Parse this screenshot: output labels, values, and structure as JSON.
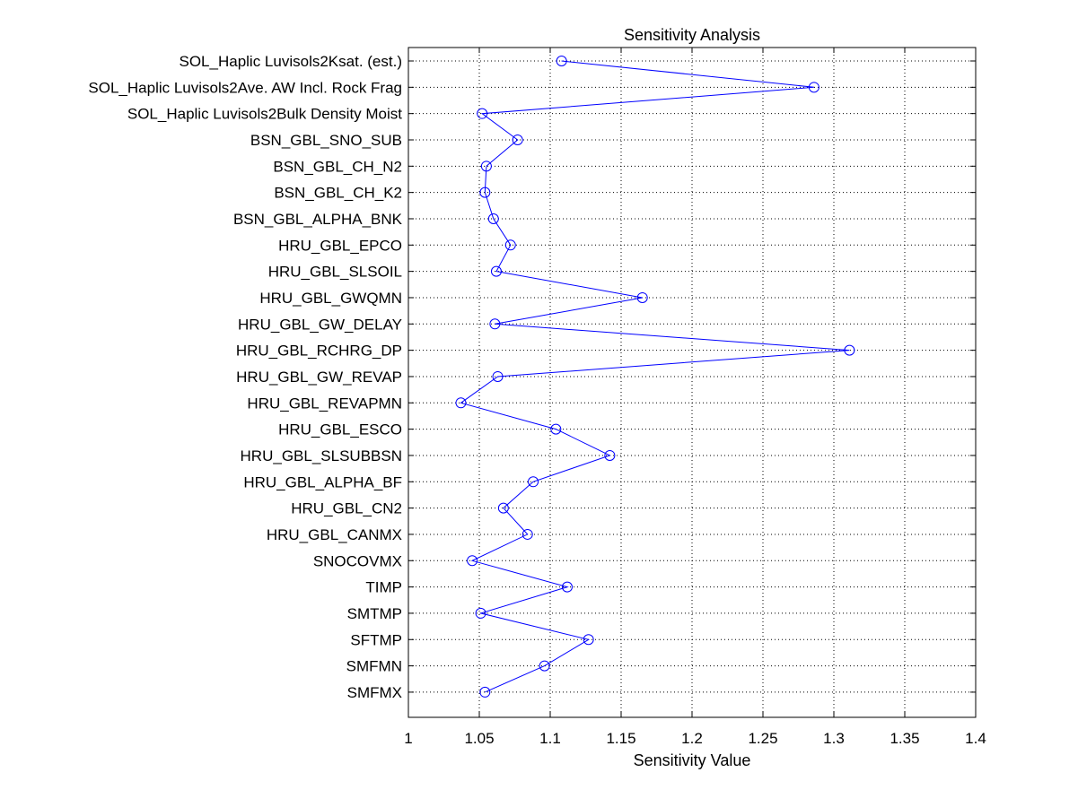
{
  "chart_data": {
    "type": "line",
    "title": "Sensitivity Analysis",
    "xlabel": "Sensitivity Value",
    "ylabel": "",
    "xlim": [
      1,
      1.4
    ],
    "x_ticks": [
      1,
      1.05,
      1.1,
      1.15,
      1.2,
      1.25,
      1.3,
      1.35,
      1.4
    ],
    "x_tick_labels": [
      "1",
      "1.05",
      "1.1",
      "1.15",
      "1.2",
      "1.25",
      "1.3",
      "1.35",
      "1.4"
    ],
    "grid": true,
    "marker": "circle",
    "color": "#0000ff",
    "parameters": [
      "SOL_Haplic Luvisols2Ksat. (est.)",
      "SOL_Haplic Luvisols2Ave. AW Incl. Rock Frag",
      "SOL_Haplic Luvisols2Bulk Density Moist",
      "BSN_GBL_SNO_SUB",
      "BSN_GBL_CH_N2",
      "BSN_GBL_CH_K2",
      "BSN_GBL_ALPHA_BNK",
      "HRU_GBL_EPCO",
      "HRU_GBL_SLSOIL",
      "HRU_GBL_GWQMN",
      "HRU_GBL_GW_DELAY",
      "HRU_GBL_RCHRG_DP",
      "HRU_GBL_GW_REVAP",
      "HRU_GBL_REVAPMN",
      "HRU_GBL_ESCO",
      "HRU_GBL_SLSUBBSN",
      "HRU_GBL_ALPHA_BF",
      "HRU_GBL_CN2",
      "HRU_GBL_CANMX",
      "SNOCOVMX",
      "TIMP",
      "SMTMP",
      "SFTMP",
      "SMFMN",
      "SMFMX"
    ],
    "values": [
      1.108,
      1.286,
      1.052,
      1.077,
      1.055,
      1.054,
      1.06,
      1.072,
      1.062,
      1.165,
      1.061,
      1.311,
      1.063,
      1.037,
      1.104,
      1.142,
      1.088,
      1.067,
      1.084,
      1.045,
      1.112,
      1.051,
      1.127,
      1.096,
      1.054
    ]
  }
}
